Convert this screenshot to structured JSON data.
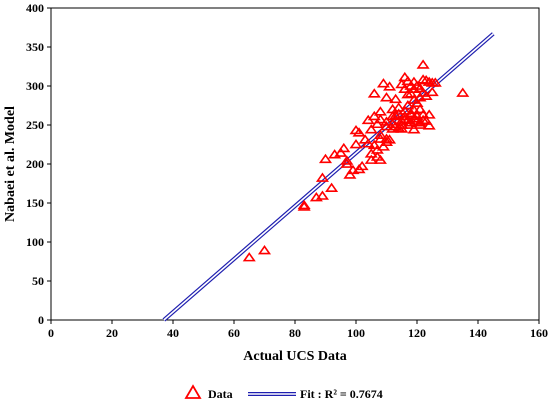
{
  "chart_data": {
    "type": "scatter",
    "title": "",
    "xlabel": "Actual UCS Data",
    "ylabel": "Nabaei et al. Model",
    "xlim": [
      0,
      160
    ],
    "ylim": [
      0,
      400
    ],
    "x_ticks": [
      "0",
      "20",
      "40",
      "60",
      "80",
      "100",
      "120",
      "140",
      "160"
    ],
    "y_ticks": [
      "0",
      "50",
      "100",
      "150",
      "200",
      "250",
      "300",
      "350",
      "400"
    ],
    "grid": false,
    "legend_position": "bottom",
    "colors": {
      "data": "#ff0000",
      "fit": "#1f1fb0"
    },
    "series": [
      {
        "name": "Data",
        "type": "scatter",
        "marker": "triangle-open",
        "points": [
          [
            65,
            80
          ],
          [
            70,
            89
          ],
          [
            83,
            145
          ],
          [
            83,
            147
          ],
          [
            87,
            157
          ],
          [
            89,
            159
          ],
          [
            89,
            182
          ],
          [
            90,
            206
          ],
          [
            92,
            169
          ],
          [
            93,
            212
          ],
          [
            95,
            214
          ],
          [
            96,
            220
          ],
          [
            97,
            200
          ],
          [
            97,
            204
          ],
          [
            98,
            186
          ],
          [
            99,
            192
          ],
          [
            100,
            225
          ],
          [
            100,
            243
          ],
          [
            101,
            240
          ],
          [
            101,
            193
          ],
          [
            102,
            197
          ],
          [
            103,
            231
          ],
          [
            104,
            226
          ],
          [
            104,
            256
          ],
          [
            105,
            205
          ],
          [
            105,
            244
          ],
          [
            105,
            213
          ],
          [
            106,
            224
          ],
          [
            106,
            290
          ],
          [
            106,
            261
          ],
          [
            107,
            251
          ],
          [
            107,
            218
          ],
          [
            107,
            209
          ],
          [
            108,
            237
          ],
          [
            108,
            232
          ],
          [
            108,
            205
          ],
          [
            108,
            257
          ],
          [
            108,
            267
          ],
          [
            109,
            303
          ],
          [
            109,
            222
          ],
          [
            110,
            285
          ],
          [
            110,
            248
          ],
          [
            110,
            232
          ],
          [
            110,
            228
          ],
          [
            110,
            254
          ],
          [
            111,
            299
          ],
          [
            111,
            231
          ],
          [
            112,
            261
          ],
          [
            112,
            270
          ],
          [
            112,
            245
          ],
          [
            112,
            251
          ],
          [
            113,
            262
          ],
          [
            113,
            283
          ],
          [
            113,
            248
          ],
          [
            114,
            246
          ],
          [
            114,
            264
          ],
          [
            114,
            272
          ],
          [
            115,
            250
          ],
          [
            115,
            255
          ],
          [
            115,
            302
          ],
          [
            115,
            245
          ],
          [
            116,
            311
          ],
          [
            116,
            296
          ],
          [
            116,
            268
          ],
          [
            116,
            261
          ],
          [
            116,
            257
          ],
          [
            117,
            306
          ],
          [
            117,
            289
          ],
          [
            117,
            275
          ],
          [
            117,
            256
          ],
          [
            117,
            250
          ],
          [
            118,
            300
          ],
          [
            118,
            290
          ],
          [
            118,
            263
          ],
          [
            118,
            253
          ],
          [
            118,
            265
          ],
          [
            119,
            296
          ],
          [
            119,
            282
          ],
          [
            119,
            269
          ],
          [
            119,
            244
          ],
          [
            119,
            305
          ],
          [
            119,
            258
          ],
          [
            120,
            278
          ],
          [
            120,
            261
          ],
          [
            120,
            255
          ],
          [
            120,
            300
          ],
          [
            121,
            297
          ],
          [
            121,
            285
          ],
          [
            121,
            270
          ],
          [
            121,
            253
          ],
          [
            121,
            250
          ],
          [
            122,
            327
          ],
          [
            122,
            308
          ],
          [
            122,
            291
          ],
          [
            122,
            263
          ],
          [
            122,
            256
          ],
          [
            123,
            307
          ],
          [
            123,
            287
          ],
          [
            123,
            255
          ],
          [
            124,
            305
          ],
          [
            124,
            263
          ],
          [
            124,
            249
          ],
          [
            125,
            304
          ],
          [
            125,
            292
          ],
          [
            126,
            304
          ],
          [
            135,
            291
          ]
        ]
      },
      {
        "name": "Fit : ",
        "type": "line",
        "points": [
          [
            37,
            0
          ],
          [
            145,
            367
          ]
        ]
      }
    ],
    "legend": {
      "data_label": "Data",
      "fit_label": "Fit :  R² = 0.7674"
    }
  }
}
